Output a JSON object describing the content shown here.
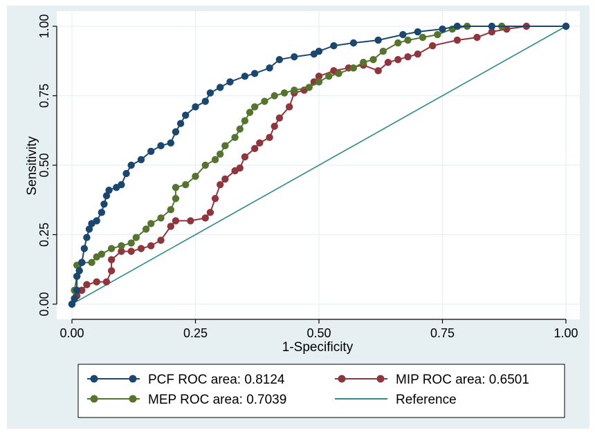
{
  "chart_data": {
    "type": "line",
    "title": "",
    "xlabel": "1-Specificity",
    "ylabel": "Sensitivity",
    "xlim": [
      0,
      1
    ],
    "ylim": [
      0,
      1
    ],
    "x_ticks": [
      "0.00",
      "0.25",
      "0.50",
      "0.75",
      "1.00"
    ],
    "y_ticks": [
      "0.00",
      "0.25",
      "0.50",
      "0.75",
      "1.00"
    ],
    "grid": true,
    "legend_position": "bottom",
    "colors": {
      "background": "#e6eff2",
      "plot_background": "#ffffff",
      "grid": "#e6eff2",
      "pcf": "#1a476f",
      "mip": "#90353b",
      "mep": "#55752f",
      "reference": "#2e8b8b"
    },
    "series": [
      {
        "name": "PCF ROC area: 0.8124",
        "key": "pcf",
        "marker": "circle",
        "points": [
          [
            0,
            0
          ],
          [
            0.005,
            0.02
          ],
          [
            0.01,
            0.05
          ],
          [
            0.01,
            0.1
          ],
          [
            0.015,
            0.12
          ],
          [
            0.02,
            0.15
          ],
          [
            0.025,
            0.2
          ],
          [
            0.03,
            0.24
          ],
          [
            0.035,
            0.27
          ],
          [
            0.04,
            0.29
          ],
          [
            0.05,
            0.3
          ],
          [
            0.06,
            0.33
          ],
          [
            0.065,
            0.36
          ],
          [
            0.07,
            0.39
          ],
          [
            0.075,
            0.41
          ],
          [
            0.09,
            0.42
          ],
          [
            0.1,
            0.43
          ],
          [
            0.11,
            0.47
          ],
          [
            0.12,
            0.5
          ],
          [
            0.14,
            0.52
          ],
          [
            0.16,
            0.55
          ],
          [
            0.18,
            0.57
          ],
          [
            0.2,
            0.58
          ],
          [
            0.21,
            0.62
          ],
          [
            0.22,
            0.65
          ],
          [
            0.23,
            0.68
          ],
          [
            0.25,
            0.71
          ],
          [
            0.27,
            0.73
          ],
          [
            0.28,
            0.76
          ],
          [
            0.3,
            0.78
          ],
          [
            0.32,
            0.8
          ],
          [
            0.35,
            0.82
          ],
          [
            0.37,
            0.83
          ],
          [
            0.4,
            0.85
          ],
          [
            0.42,
            0.88
          ],
          [
            0.45,
            0.89
          ],
          [
            0.49,
            0.9
          ],
          [
            0.5,
            0.91
          ],
          [
            0.53,
            0.93
          ],
          [
            0.57,
            0.94
          ],
          [
            0.62,
            0.95
          ],
          [
            0.67,
            0.97
          ],
          [
            0.7,
            0.98
          ],
          [
            0.75,
            0.99
          ],
          [
            0.78,
            1.0
          ],
          [
            0.85,
            1.0
          ],
          [
            1.0,
            1.0
          ]
        ]
      },
      {
        "name": "MIP ROC area: 0.6501",
        "key": "mip",
        "marker": "circle",
        "points": [
          [
            0,
            0
          ],
          [
            0.01,
            0.03
          ],
          [
            0.02,
            0.05
          ],
          [
            0.03,
            0.07
          ],
          [
            0.05,
            0.08
          ],
          [
            0.07,
            0.08
          ],
          [
            0.08,
            0.12
          ],
          [
            0.08,
            0.16
          ],
          [
            0.1,
            0.19
          ],
          [
            0.12,
            0.19
          ],
          [
            0.14,
            0.2
          ],
          [
            0.16,
            0.21
          ],
          [
            0.18,
            0.23
          ],
          [
            0.2,
            0.28
          ],
          [
            0.21,
            0.3
          ],
          [
            0.24,
            0.3
          ],
          [
            0.27,
            0.31
          ],
          [
            0.28,
            0.33
          ],
          [
            0.29,
            0.38
          ],
          [
            0.3,
            0.43
          ],
          [
            0.31,
            0.45
          ],
          [
            0.33,
            0.48
          ],
          [
            0.34,
            0.49
          ],
          [
            0.35,
            0.53
          ],
          [
            0.37,
            0.56
          ],
          [
            0.38,
            0.58
          ],
          [
            0.4,
            0.6
          ],
          [
            0.41,
            0.64
          ],
          [
            0.42,
            0.67
          ],
          [
            0.44,
            0.71
          ],
          [
            0.45,
            0.76
          ],
          [
            0.47,
            0.77
          ],
          [
            0.49,
            0.8
          ],
          [
            0.5,
            0.82
          ],
          [
            0.53,
            0.84
          ],
          [
            0.56,
            0.85
          ],
          [
            0.59,
            0.86
          ],
          [
            0.62,
            0.84
          ],
          [
            0.64,
            0.87
          ],
          [
            0.66,
            0.88
          ],
          [
            0.68,
            0.89
          ],
          [
            0.7,
            0.9
          ],
          [
            0.73,
            0.93
          ],
          [
            0.78,
            0.95
          ],
          [
            0.82,
            0.96
          ],
          [
            0.85,
            0.98
          ],
          [
            0.88,
            0.99
          ],
          [
            0.92,
            1.0
          ],
          [
            1.0,
            1.0
          ]
        ]
      },
      {
        "name": "MEP ROC area: 0.7039",
        "key": "mep",
        "marker": "circle",
        "points": [
          [
            0,
            0
          ],
          [
            0.005,
            0.05
          ],
          [
            0.01,
            0.1
          ],
          [
            0.01,
            0.14
          ],
          [
            0.02,
            0.15
          ],
          [
            0.04,
            0.15
          ],
          [
            0.05,
            0.17
          ],
          [
            0.06,
            0.18
          ],
          [
            0.08,
            0.2
          ],
          [
            0.1,
            0.21
          ],
          [
            0.12,
            0.22
          ],
          [
            0.13,
            0.24
          ],
          [
            0.15,
            0.27
          ],
          [
            0.16,
            0.29
          ],
          [
            0.18,
            0.31
          ],
          [
            0.2,
            0.34
          ],
          [
            0.21,
            0.38
          ],
          [
            0.21,
            0.42
          ],
          [
            0.23,
            0.43
          ],
          [
            0.25,
            0.46
          ],
          [
            0.27,
            0.5
          ],
          [
            0.29,
            0.52
          ],
          [
            0.3,
            0.54
          ],
          [
            0.31,
            0.57
          ],
          [
            0.33,
            0.6
          ],
          [
            0.34,
            0.63
          ],
          [
            0.35,
            0.66
          ],
          [
            0.36,
            0.69
          ],
          [
            0.37,
            0.71
          ],
          [
            0.39,
            0.73
          ],
          [
            0.41,
            0.75
          ],
          [
            0.43,
            0.76
          ],
          [
            0.45,
            0.77
          ],
          [
            0.48,
            0.78
          ],
          [
            0.5,
            0.8
          ],
          [
            0.52,
            0.82
          ],
          [
            0.54,
            0.83
          ],
          [
            0.57,
            0.85
          ],
          [
            0.59,
            0.87
          ],
          [
            0.61,
            0.88
          ],
          [
            0.63,
            0.91
          ],
          [
            0.66,
            0.94
          ],
          [
            0.68,
            0.95
          ],
          [
            0.71,
            0.96
          ],
          [
            0.74,
            0.97
          ],
          [
            0.77,
            0.99
          ],
          [
            0.8,
            1.0
          ],
          [
            0.87,
            1.0
          ],
          [
            1.0,
            1.0
          ]
        ]
      },
      {
        "name": "Reference",
        "key": "reference",
        "marker": "none",
        "points": [
          [
            0,
            0
          ],
          [
            1,
            1
          ]
        ]
      }
    ],
    "legend": {
      "items": [
        {
          "label": "PCF ROC area: 0.8124",
          "key": "pcf",
          "marker": true
        },
        {
          "label": "MIP ROC area: 0.6501",
          "key": "mip",
          "marker": true
        },
        {
          "label": "MEP ROC area: 0.7039",
          "key": "mep",
          "marker": true
        },
        {
          "label": "Reference",
          "key": "reference",
          "marker": false
        }
      ]
    }
  }
}
